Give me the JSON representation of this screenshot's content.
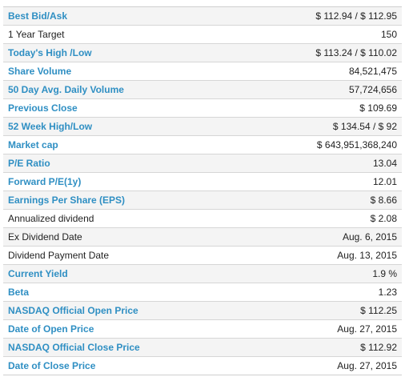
{
  "quote_summary": {
    "rows": [
      {
        "label": "Best Bid/Ask",
        "value": "$ 112.94 / $ 112.95"
      },
      {
        "label": "1 Year Target",
        "value": "150"
      },
      {
        "label": "Today's High /Low",
        "value": "$ 113.24 / $ 110.02"
      },
      {
        "label": "Share Volume",
        "value": "84,521,475"
      },
      {
        "label": "50 Day Avg. Daily Volume",
        "value": "57,724,656"
      },
      {
        "label": "Previous Close",
        "value": "$ 109.69"
      },
      {
        "label": "52 Week High/Low",
        "value": "$ 134.54 / $ 92"
      },
      {
        "label": "Market cap",
        "value": "$ 643,951,368,240"
      },
      {
        "label": "P/E Ratio",
        "value": "13.04"
      },
      {
        "label": "Forward P/E(1y)",
        "value": "12.01"
      },
      {
        "label": "Earnings Per Share (EPS)",
        "value": "$ 8.66"
      },
      {
        "label": "Annualized dividend",
        "value": "$ 2.08"
      },
      {
        "label": "Ex Dividend Date",
        "value": "Aug. 6, 2015"
      },
      {
        "label": "Dividend Payment Date",
        "value": "Aug. 13, 2015"
      },
      {
        "label": "Current Yield",
        "value": "1.9 %"
      },
      {
        "label": "Beta",
        "value": "1.23"
      },
      {
        "label": "NASDAQ Official Open Price",
        "value": "$ 112.25"
      },
      {
        "label": "Date of Open Price",
        "value": "Aug. 27, 2015"
      },
      {
        "label": "NASDAQ Official Close Price",
        "value": "$ 112.92"
      },
      {
        "label": "Date of Close Price",
        "value": "Aug. 27, 2015"
      }
    ]
  },
  "colors": {
    "link_label": "#2f8fc3",
    "plain_text": "#222222",
    "odd_row_bg": "#f4f4f4",
    "even_row_bg": "#ffffff",
    "row_border": "#d6d6d6"
  }
}
